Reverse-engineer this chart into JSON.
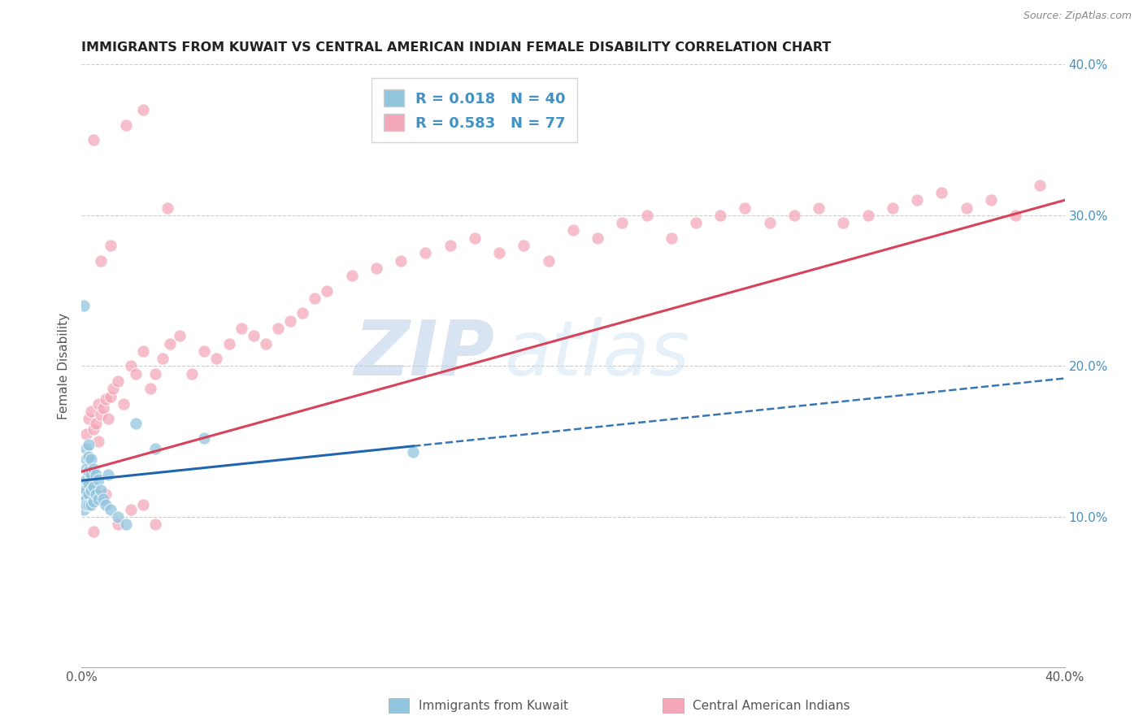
{
  "title": "IMMIGRANTS FROM KUWAIT VS CENTRAL AMERICAN INDIAN FEMALE DISABILITY CORRELATION CHART",
  "source": "Source: ZipAtlas.com",
  "ylabel": "Female Disability",
  "xlim": [
    0.0,
    0.4
  ],
  "ylim": [
    0.0,
    0.4
  ],
  "color_kuwait": "#92c5de",
  "color_central": "#f4a7b9",
  "color_trendline_kuwait": "#2166ac",
  "color_trendline_central": "#d6435a",
  "watermark_zip": "ZIP",
  "watermark_atlas": "atlas",
  "kuwait_x": [
    0.001,
    0.001,
    0.001,
    0.001,
    0.002,
    0.002,
    0.002,
    0.002,
    0.002,
    0.002,
    0.002,
    0.003,
    0.003,
    0.003,
    0.003,
    0.003,
    0.003,
    0.004,
    0.004,
    0.004,
    0.004,
    0.005,
    0.005,
    0.005,
    0.006,
    0.006,
    0.007,
    0.007,
    0.008,
    0.009,
    0.01,
    0.011,
    0.012,
    0.015,
    0.018,
    0.022,
    0.03,
    0.05,
    0.135,
    0.001
  ],
  "kuwait_y": [
    0.12,
    0.115,
    0.11,
    0.105,
    0.145,
    0.138,
    0.132,
    0.125,
    0.118,
    0.112,
    0.108,
    0.148,
    0.14,
    0.13,
    0.122,
    0.115,
    0.108,
    0.138,
    0.128,
    0.118,
    0.108,
    0.132,
    0.12,
    0.11,
    0.128,
    0.115,
    0.125,
    0.112,
    0.118,
    0.112,
    0.108,
    0.128,
    0.105,
    0.1,
    0.095,
    0.162,
    0.145,
    0.152,
    0.143,
    0.24
  ],
  "central_x": [
    0.002,
    0.003,
    0.004,
    0.005,
    0.006,
    0.007,
    0.008,
    0.009,
    0.01,
    0.011,
    0.012,
    0.013,
    0.015,
    0.017,
    0.02,
    0.022,
    0.025,
    0.028,
    0.03,
    0.033,
    0.036,
    0.04,
    0.045,
    0.05,
    0.055,
    0.06,
    0.065,
    0.07,
    0.075,
    0.08,
    0.085,
    0.09,
    0.095,
    0.1,
    0.11,
    0.12,
    0.13,
    0.14,
    0.15,
    0.16,
    0.17,
    0.18,
    0.19,
    0.2,
    0.21,
    0.22,
    0.23,
    0.24,
    0.25,
    0.26,
    0.27,
    0.28,
    0.29,
    0.3,
    0.31,
    0.32,
    0.33,
    0.34,
    0.35,
    0.36,
    0.37,
    0.38,
    0.39,
    0.008,
    0.012,
    0.018,
    0.025,
    0.035,
    0.003,
    0.005,
    0.007,
    0.01,
    0.015,
    0.02,
    0.025,
    0.03,
    0.005
  ],
  "central_y": [
    0.155,
    0.165,
    0.17,
    0.158,
    0.162,
    0.175,
    0.168,
    0.172,
    0.178,
    0.165,
    0.18,
    0.185,
    0.19,
    0.175,
    0.2,
    0.195,
    0.21,
    0.185,
    0.195,
    0.205,
    0.215,
    0.22,
    0.195,
    0.21,
    0.205,
    0.215,
    0.225,
    0.22,
    0.215,
    0.225,
    0.23,
    0.235,
    0.245,
    0.25,
    0.26,
    0.265,
    0.27,
    0.275,
    0.28,
    0.285,
    0.275,
    0.28,
    0.27,
    0.29,
    0.285,
    0.295,
    0.3,
    0.285,
    0.295,
    0.3,
    0.305,
    0.295,
    0.3,
    0.305,
    0.295,
    0.3,
    0.305,
    0.31,
    0.315,
    0.305,
    0.31,
    0.3,
    0.32,
    0.27,
    0.28,
    0.36,
    0.37,
    0.305,
    0.13,
    0.09,
    0.15,
    0.115,
    0.095,
    0.105,
    0.108,
    0.095,
    0.35
  ]
}
